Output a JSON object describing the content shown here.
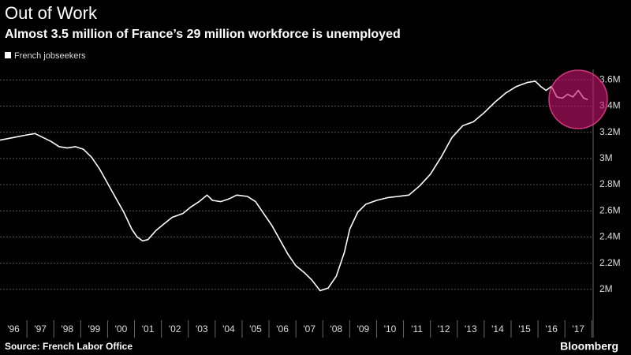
{
  "chart_data": {
    "type": "line",
    "title": "Out of Work",
    "subtitle": "Almost 3.5 million of France’s 29 million workforce is unemployed",
    "source": "Source: French Labor Office",
    "credit": "Bloomberg",
    "x": [
      1996.0,
      1996.5,
      1997.0,
      1997.3,
      1997.6,
      1997.9,
      1998.2,
      1998.5,
      1998.8,
      1999.1,
      1999.4,
      1999.7,
      2000.0,
      2000.3,
      2000.6,
      2000.9,
      2001.1,
      2001.3,
      2001.5,
      2001.8,
      2002.1,
      2002.4,
      2002.8,
      2003.1,
      2003.4,
      2003.7,
      2003.9,
      2004.2,
      2004.5,
      2004.8,
      2005.2,
      2005.5,
      2005.8,
      2006.1,
      2006.4,
      2006.7,
      2007.0,
      2007.3,
      2007.6,
      2007.9,
      2008.2,
      2008.5,
      2008.8,
      2009.0,
      2009.3,
      2009.6,
      2010.0,
      2010.4,
      2010.8,
      2011.2,
      2011.6,
      2012.0,
      2012.4,
      2012.8,
      2013.2,
      2013.6,
      2014.0,
      2014.4,
      2014.8,
      2015.2,
      2015.6,
      2015.9,
      2016.1,
      2016.3,
      2016.5,
      2016.7,
      2016.9,
      2017.1,
      2017.3,
      2017.5,
      2017.7,
      2017.85
    ],
    "series": [
      {
        "name": "French jobseekers",
        "color": "#ffffff",
        "values": [
          3.14,
          3.16,
          3.18,
          3.19,
          3.16,
          3.13,
          3.09,
          3.08,
          3.09,
          3.07,
          3.01,
          2.92,
          2.81,
          2.7,
          2.59,
          2.46,
          2.4,
          2.37,
          2.38,
          2.45,
          2.5,
          2.55,
          2.58,
          2.63,
          2.67,
          2.72,
          2.68,
          2.67,
          2.69,
          2.72,
          2.71,
          2.67,
          2.58,
          2.49,
          2.38,
          2.27,
          2.18,
          2.13,
          2.07,
          1.99,
          2.01,
          2.1,
          2.28,
          2.46,
          2.59,
          2.65,
          2.68,
          2.7,
          2.71,
          2.72,
          2.79,
          2.88,
          3.01,
          3.16,
          3.25,
          3.28,
          3.35,
          3.43,
          3.5,
          3.55,
          3.58,
          3.59,
          3.55,
          3.52,
          3.55,
          3.47,
          3.46,
          3.49,
          3.47,
          3.52,
          3.46,
          3.45
        ]
      }
    ],
    "xlim": [
      1996,
      2018.05
    ],
    "xticks": [
      {
        "value": 1996.5,
        "label": "'96"
      },
      {
        "value": 1997.5,
        "label": "'97"
      },
      {
        "value": 1998.5,
        "label": "'98"
      },
      {
        "value": 1999.5,
        "label": "'99"
      },
      {
        "value": 2000.5,
        "label": "'00"
      },
      {
        "value": 2001.5,
        "label": "'01"
      },
      {
        "value": 2002.5,
        "label": "'02"
      },
      {
        "value": 2003.5,
        "label": "'03"
      },
      {
        "value": 2004.5,
        "label": "'04"
      },
      {
        "value": 2005.5,
        "label": "'05"
      },
      {
        "value": 2006.5,
        "label": "'06"
      },
      {
        "value": 2007.5,
        "label": "'07"
      },
      {
        "value": 2008.5,
        "label": "'08"
      },
      {
        "value": 2009.5,
        "label": "'09"
      },
      {
        "value": 2010.5,
        "label": "'10"
      },
      {
        "value": 2011.5,
        "label": "'11"
      },
      {
        "value": 2012.5,
        "label": "'12"
      },
      {
        "value": 2013.5,
        "label": "'13"
      },
      {
        "value": 2014.5,
        "label": "'14"
      },
      {
        "value": 2015.5,
        "label": "'15"
      },
      {
        "value": 2016.5,
        "label": "'16"
      },
      {
        "value": 2017.5,
        "label": "'17"
      }
    ],
    "ylim": [
      1.8,
      3.68
    ],
    "yticks": [
      {
        "value": 2,
        "label": "2M"
      },
      {
        "value": 2.2,
        "label": "2.2M"
      },
      {
        "value": 2.4,
        "label": "2.4M"
      },
      {
        "value": 2.6,
        "label": "2.6M"
      },
      {
        "value": 2.8,
        "label": "2.8M"
      },
      {
        "value": 3,
        "label": "3M"
      },
      {
        "value": 3.2,
        "label": "3.2M"
      },
      {
        "value": 3.4,
        "label": "3.4M"
      },
      {
        "value": 3.6,
        "label": "3.6M"
      }
    ],
    "grid": true
  }
}
